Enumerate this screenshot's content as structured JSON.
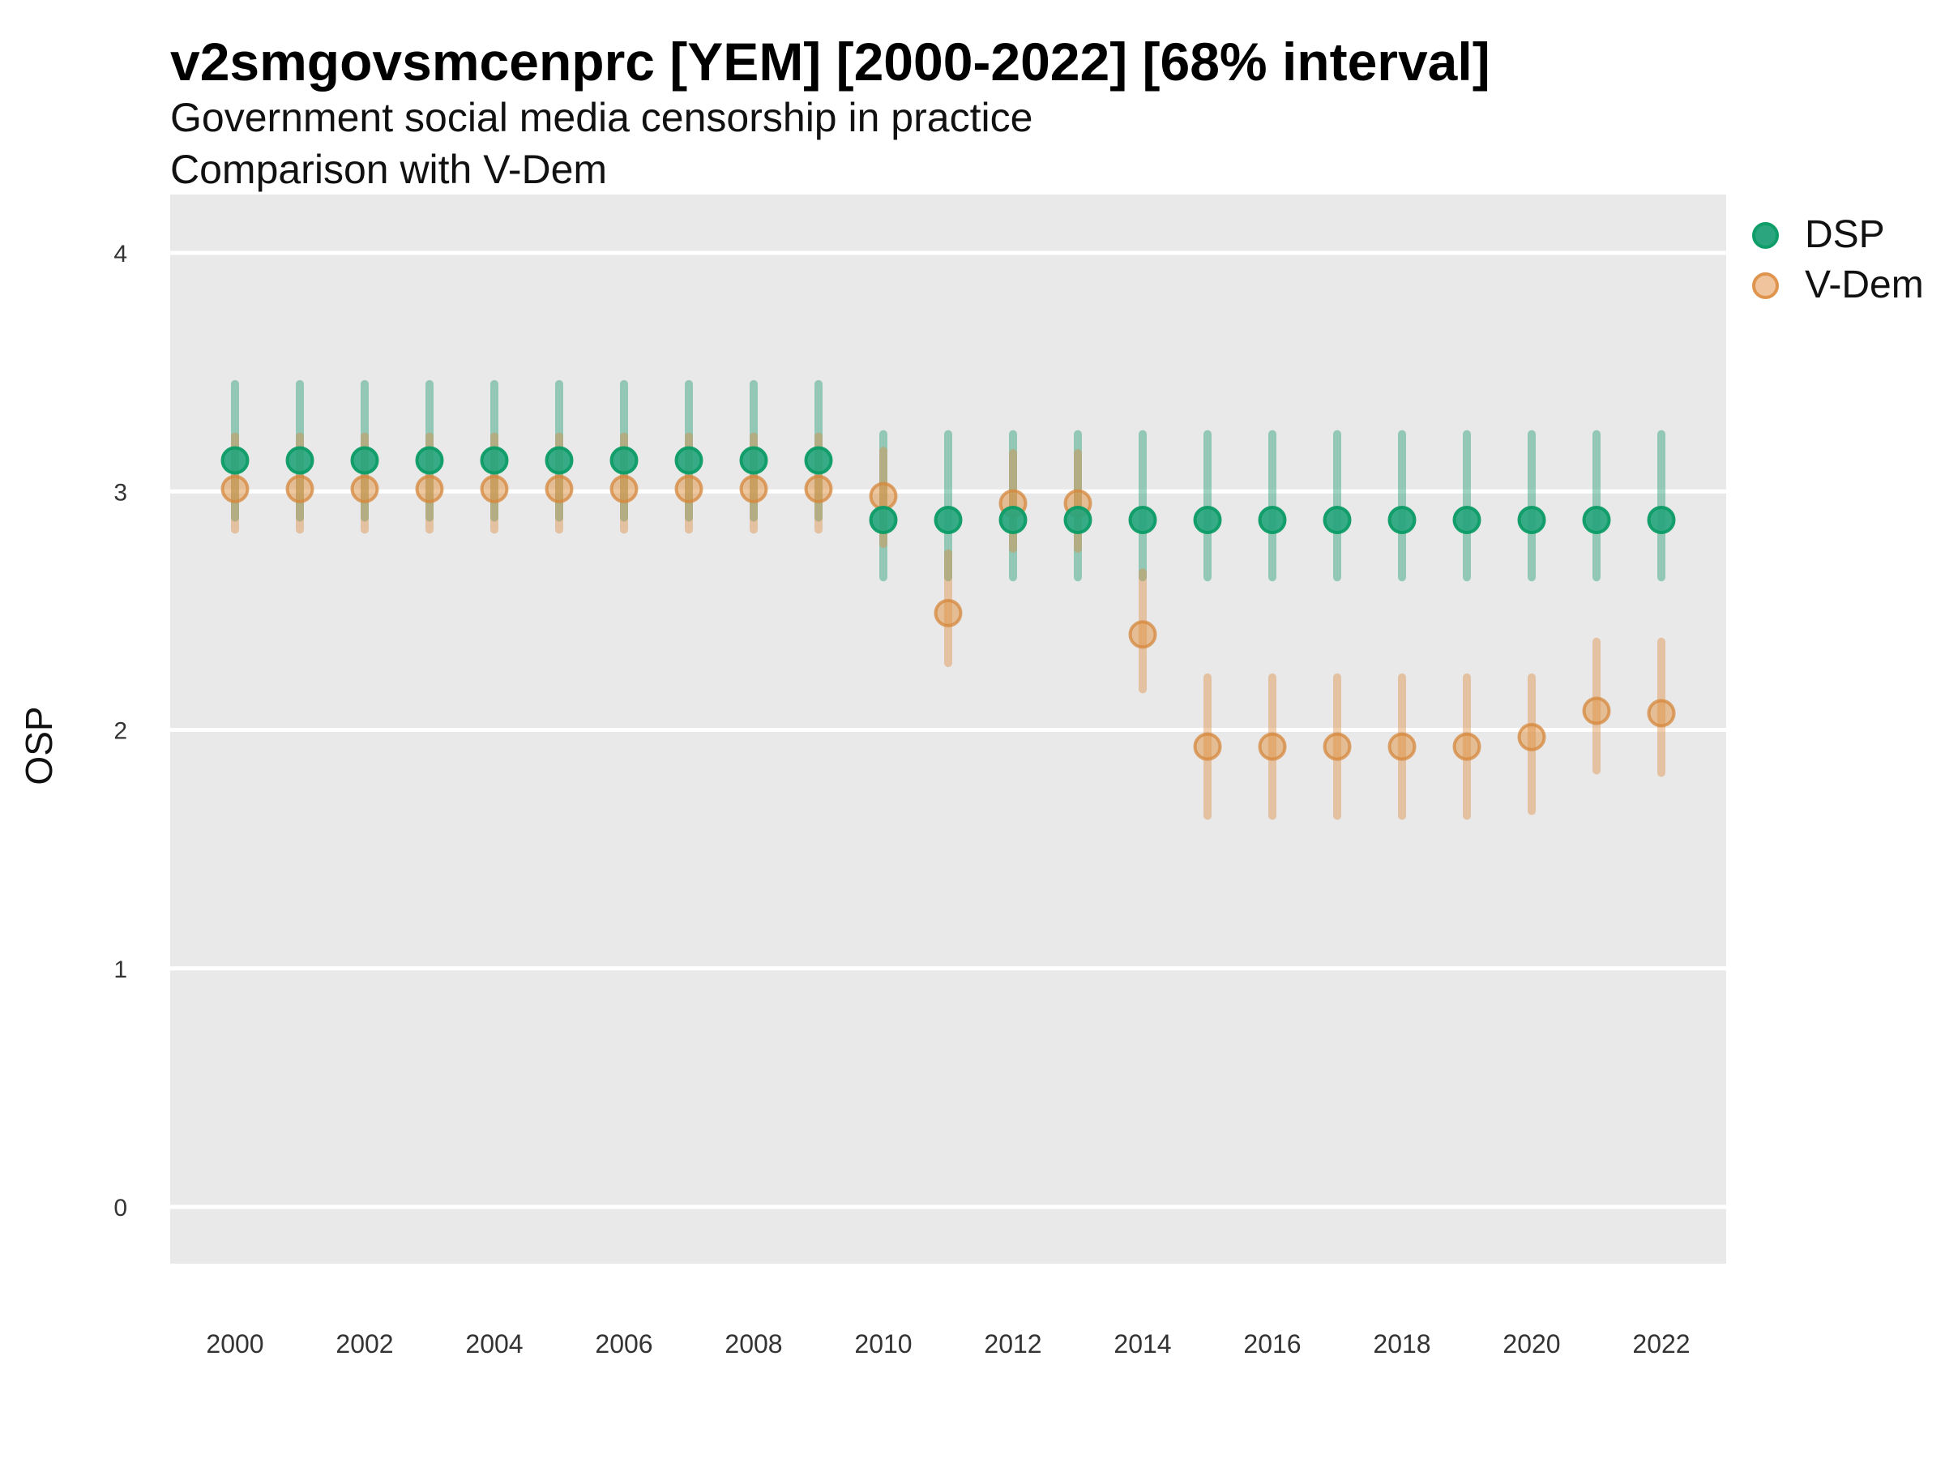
{
  "header": {
    "title": "v2smgovsmcenprc [YEM] [2000-2022] [68% interval]",
    "subtitle1": "Government social media censorship in practice",
    "subtitle2": "Comparison with V-Dem"
  },
  "axes": {
    "y_label": "OSP",
    "y_ticks": [
      0,
      1,
      2,
      3,
      4
    ],
    "x_ticks": [
      2000,
      2002,
      2004,
      2006,
      2008,
      2010,
      2012,
      2014,
      2016,
      2018,
      2020,
      2022
    ],
    "grid": "horizontal major gridlines only, white on grey panel",
    "legend_position": "right-top"
  },
  "legend": {
    "items": [
      {
        "label": "DSP"
      },
      {
        "label": "V-Dem"
      }
    ]
  },
  "colors": {
    "panel_background": "#e9e9e9",
    "gridline": "#ffffff",
    "dsp_point_fill": "#27a47d",
    "dsp_point_stroke": "#0c9c66",
    "dsp_interval": "#2a9d78",
    "vdem_point_fill": "#e0913f",
    "vdem_point_stroke": "#d6873b",
    "vdem_interval": "#dd8a3f",
    "legend_dsp_fill": "#2aa57d",
    "legend_dsp_stroke": "#0f9e6a",
    "legend_vdem_fill": "#f0c49c",
    "legend_vdem_stroke": "#e0954f",
    "text": "#111111",
    "tick_text": "#333333"
  },
  "chart_data": {
    "type": "pointrange-scatter",
    "interval": "68%",
    "title": "v2smgovsmcenprc [YEM] [2000-2022] [68% interval]",
    "xlabel": "",
    "ylabel": "OSP",
    "ylim": [
      -0.24,
      4.25
    ],
    "xlim": [
      1999,
      2023
    ],
    "x": [
      2000,
      2001,
      2002,
      2003,
      2004,
      2005,
      2006,
      2007,
      2008,
      2009,
      2010,
      2011,
      2012,
      2013,
      2014,
      2015,
      2016,
      2017,
      2018,
      2019,
      2020,
      2021,
      2022
    ],
    "series": [
      {
        "name": "DSP",
        "est": [
          3.13,
          3.13,
          3.13,
          3.13,
          3.13,
          3.13,
          3.13,
          3.13,
          3.13,
          3.13,
          2.88,
          2.88,
          2.88,
          2.88,
          2.88,
          2.88,
          2.88,
          2.88,
          2.88,
          2.88,
          2.88,
          2.88,
          2.88
        ],
        "lo": [
          2.89,
          2.89,
          2.89,
          2.89,
          2.89,
          2.89,
          2.89,
          2.89,
          2.89,
          2.89,
          2.64,
          2.64,
          2.64,
          2.64,
          2.64,
          2.64,
          2.64,
          2.64,
          2.64,
          2.64,
          2.64,
          2.64,
          2.64
        ],
        "hi": [
          3.45,
          3.45,
          3.45,
          3.45,
          3.45,
          3.45,
          3.45,
          3.45,
          3.45,
          3.45,
          3.24,
          3.24,
          3.24,
          3.24,
          3.24,
          3.24,
          3.24,
          3.24,
          3.24,
          3.24,
          3.24,
          3.24,
          3.24
        ]
      },
      {
        "name": "V-Dem",
        "est": [
          3.01,
          3.01,
          3.01,
          3.01,
          3.01,
          3.01,
          3.01,
          3.01,
          3.01,
          3.01,
          2.98,
          2.49,
          2.95,
          2.95,
          2.4,
          1.93,
          1.93,
          1.93,
          1.93,
          1.93,
          1.97,
          2.08,
          2.07
        ],
        "lo": [
          2.84,
          2.84,
          2.84,
          2.84,
          2.84,
          2.84,
          2.84,
          2.84,
          2.84,
          2.84,
          2.78,
          2.28,
          2.76,
          2.76,
          2.17,
          1.64,
          1.64,
          1.64,
          1.64,
          1.64,
          1.66,
          1.83,
          1.82
        ],
        "hi": [
          3.23,
          3.23,
          3.23,
          3.23,
          3.23,
          3.23,
          3.23,
          3.23,
          3.23,
          3.23,
          3.17,
          2.74,
          3.16,
          3.16,
          2.66,
          2.22,
          2.22,
          2.22,
          2.22,
          2.22,
          2.22,
          2.37,
          2.37
        ]
      }
    ]
  }
}
